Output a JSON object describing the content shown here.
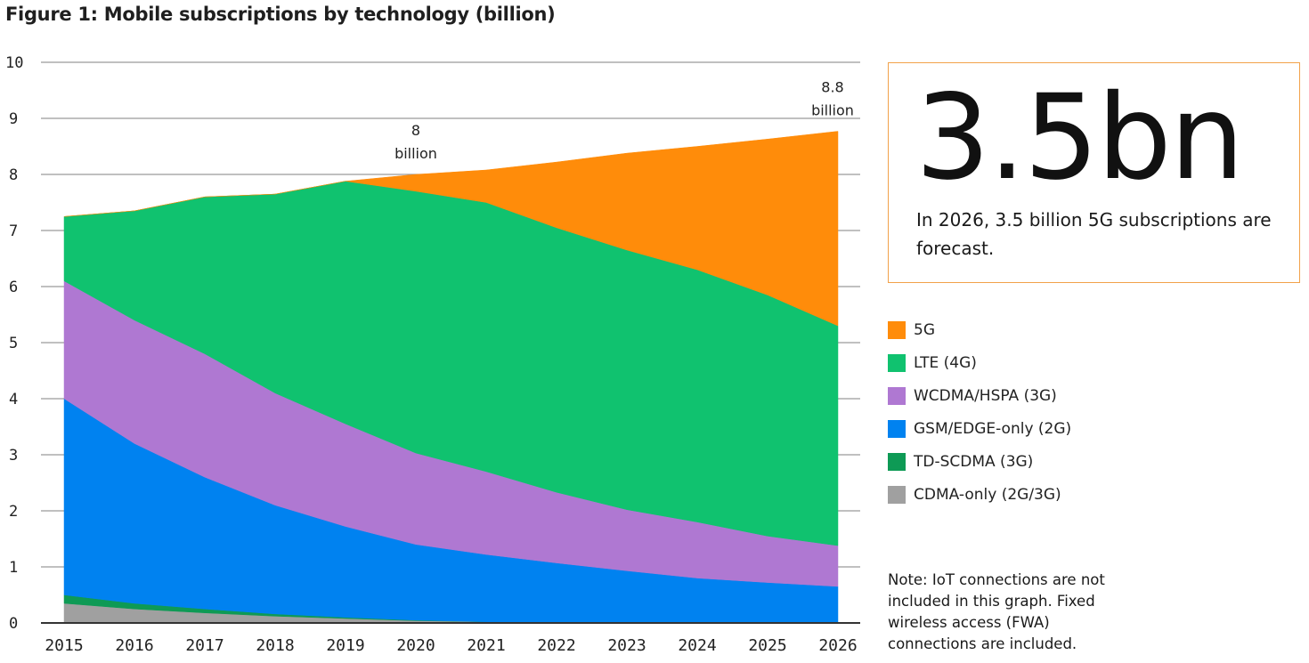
{
  "figure": {
    "title": "Figure 1: Mobile subscriptions by technology (billion)"
  },
  "callout": {
    "headline": "3.5bn",
    "text": "In 2026, 3.5 billion 5G subscriptions are forecast.",
    "border_color": "#f2a24a"
  },
  "note": "Note: IoT connections are not included in this graph. Fixed wireless access (FWA) connections are included.",
  "chart_data": {
    "type": "area",
    "stacked": true,
    "title": "Figure 1: Mobile subscriptions by technology (billion)",
    "xlabel": "",
    "ylabel": "",
    "ylim": [
      0,
      10
    ],
    "yticks": [
      0,
      1,
      2,
      3,
      4,
      5,
      6,
      7,
      8,
      9,
      10
    ],
    "grid": true,
    "legend_position": "right",
    "categories": [
      "2015",
      "2016",
      "2017",
      "2018",
      "2019",
      "2020",
      "2021",
      "2022",
      "2023",
      "2024",
      "2025",
      "2026"
    ],
    "series": [
      {
        "name": "CDMA-only (2G/3G)",
        "color": "#a0a0a0",
        "values": [
          0.35,
          0.25,
          0.18,
          0.12,
          0.08,
          0.04,
          0.02,
          0.0,
          0.0,
          0.0,
          0.0,
          0.0
        ]
      },
      {
        "name": "TD-SCDMA (3G)",
        "color": "#0e9a55",
        "values": [
          0.15,
          0.1,
          0.07,
          0.04,
          0.02,
          0.01,
          0.0,
          0.0,
          0.0,
          0.0,
          0.0,
          0.0
        ]
      },
      {
        "name": "GSM/EDGE-only (2G)",
        "color": "#0082f0",
        "values": [
          3.5,
          2.85,
          2.35,
          1.94,
          1.62,
          1.35,
          1.2,
          1.07,
          0.93,
          0.8,
          0.72,
          0.65
        ]
      },
      {
        "name": "WCDMA/HSPA (3G)",
        "color": "#af78d2",
        "values": [
          2.1,
          2.2,
          2.2,
          2.0,
          1.83,
          1.63,
          1.48,
          1.26,
          1.09,
          1.0,
          0.83,
          0.73
        ]
      },
      {
        "name": "LTE (4G)",
        "color": "#10c26f",
        "values": [
          1.15,
          1.95,
          2.8,
          3.55,
          4.33,
          4.67,
          4.8,
          4.72,
          4.63,
          4.5,
          4.3,
          3.92
        ]
      },
      {
        "name": "5G",
        "color": "#ff8c0a",
        "values": [
          0.0,
          0.0,
          0.0,
          0.0,
          0.0,
          0.3,
          0.58,
          1.17,
          1.73,
          2.2,
          2.78,
          3.47
        ]
      }
    ],
    "legend_order": [
      "5G",
      "LTE (4G)",
      "WCDMA/HSPA (3G)",
      "GSM/EDGE-only (2G)",
      "TD-SCDMA (3G)",
      "CDMA-only (2G/3G)"
    ],
    "annotations": [
      {
        "x": "2020",
        "value": "8",
        "unit": "billion"
      },
      {
        "x": "2026",
        "value": "8.8",
        "unit": "billion"
      }
    ]
  }
}
